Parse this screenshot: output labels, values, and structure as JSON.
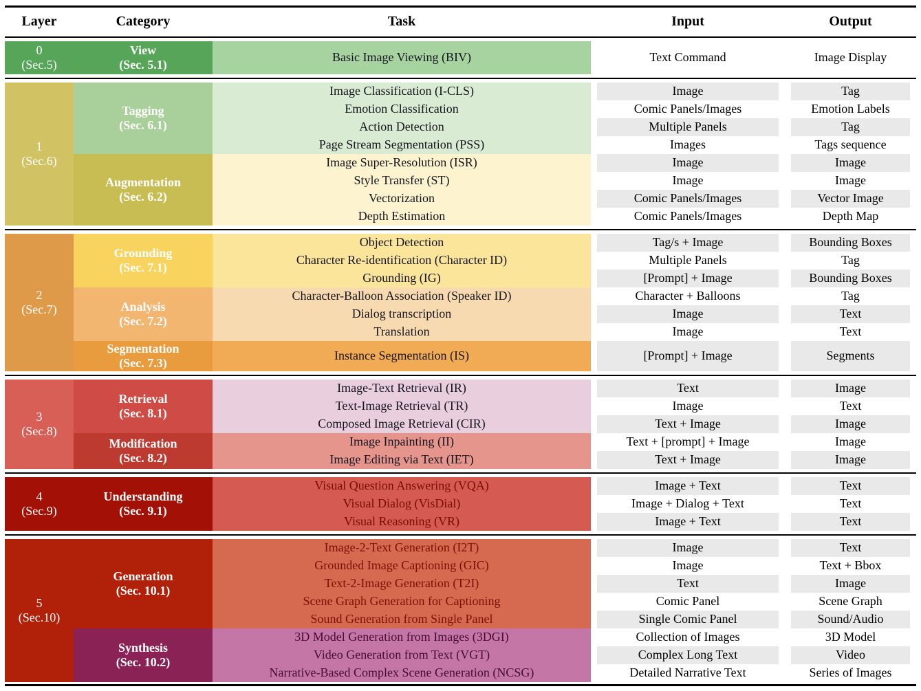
{
  "header": {
    "columns": [
      "Layer",
      "Category",
      "Task",
      "Input",
      "Output"
    ]
  },
  "colors": {
    "stripe": "#e9e9e9",
    "stripe_alt": "#ffffff",
    "task_text": "#14141d",
    "rule": "#000000"
  },
  "layers": [
    {
      "label": "0",
      "sec": "(Sec.5)",
      "color": "#56a558",
      "categories": [
        {
          "label": "View",
          "sec": "(Sec. 5.1)",
          "color": "#56a558",
          "task_bg": "#a7d3a0",
          "tasks": [
            {
              "name": "Basic Image Viewing (BIV)",
              "input": "Text Command",
              "output": "Image Display"
            }
          ]
        }
      ]
    },
    {
      "label": "1",
      "sec": "(Sec.6)",
      "color": "#d1c263",
      "categories": [
        {
          "label": "Tagging",
          "sec": "(Sec. 6.1)",
          "color": "#a9cf9a",
          "task_bg": "#d9ebd2",
          "tasks": [
            {
              "name": "Image Classification (I-CLS)",
              "input": "Image",
              "output": "Tag"
            },
            {
              "name": "Emotion Classification",
              "input": "Comic Panels/Images",
              "output": "Emotion Labels"
            },
            {
              "name": "Action Detection",
              "input": "Multiple Panels",
              "output": "Tag"
            },
            {
              "name": "Page Stream Segmentation (PSS)",
              "input": "Images",
              "output": "Tags sequence"
            }
          ]
        },
        {
          "label": "Augmentation",
          "sec": "(Sec. 6.2)",
          "color": "#c8bd52",
          "task_bg": "#fdf3cf",
          "tasks": [
            {
              "name": "Image Super-Resolution (ISR)",
              "input": "Image",
              "output": "Image"
            },
            {
              "name": "Style Transfer (ST)",
              "input": "Image",
              "output": "Image"
            },
            {
              "name": "Vectorization",
              "input": "Comic Panels/Images",
              "output": "Vector Image"
            },
            {
              "name": "Depth Estimation",
              "input": "Comic Panels/Images",
              "output": "Depth Map"
            }
          ]
        }
      ]
    },
    {
      "label": "2",
      "sec": "(Sec.7)",
      "color": "#df9a49",
      "categories": [
        {
          "label": "Grounding",
          "sec": "(Sec. 7.1)",
          "color": "#f8d45f",
          "task_bg": "#fbe59b",
          "tasks": [
            {
              "name": "Object Detection",
              "input": "Tag/s + Image",
              "output": "Bounding Boxes"
            },
            {
              "name": "Character Re-identification (Character ID)",
              "input": "Multiple Panels",
              "output": "Tag"
            },
            {
              "name": "Grounding (IG)",
              "input": "[Prompt] + Image",
              "output": "Bounding Boxes"
            }
          ]
        },
        {
          "label": "Analysis",
          "sec": "(Sec. 7.2)",
          "color": "#f3b671",
          "task_bg": "#f8dab0",
          "tasks": [
            {
              "name": "Character-Balloon Association (Speaker ID)",
              "input": "Character + Balloons",
              "output": "Tag"
            },
            {
              "name": "Dialog transcription",
              "input": "Image",
              "output": "Text"
            },
            {
              "name": "Translation",
              "input": "Image",
              "output": "Text"
            }
          ]
        },
        {
          "label": "Segmentation",
          "sec": "(Sec. 7.3)",
          "color": "#e89c3e",
          "task_bg": "#f2ab55",
          "tasks": [
            {
              "name": "Instance Segmentation (IS)",
              "input": "[Prompt] + Image",
              "output": "Segments"
            }
          ]
        }
      ]
    },
    {
      "label": "3",
      "sec": "(Sec.8)",
      "color": "#d75f56",
      "categories": [
        {
          "label": "Retrieval",
          "sec": "(Sec. 8.1)",
          "color": "#cf4c46",
          "task_bg": "#e9cede",
          "tasks": [
            {
              "name": "Image-Text Retrieval (IR)",
              "input": "Text",
              "output": "Image"
            },
            {
              "name": "Text-Image Retrieval (TR)",
              "input": "Image",
              "output": "Text"
            },
            {
              "name": "Composed Image Retrieval (CIR)",
              "input": "Text + Image",
              "output": "Image"
            }
          ]
        },
        {
          "label": "Modification",
          "sec": "(Sec. 8.2)",
          "color": "#bd3a31",
          "task_bg": "#e6958d",
          "tasks": [
            {
              "name": "Image Inpainting (II)",
              "input": "Text + [prompt] + Image",
              "output": "Image"
            },
            {
              "name": "Image Editing via Text (IET)",
              "input": "Text + Image",
              "output": "Image"
            }
          ]
        }
      ]
    },
    {
      "label": "4",
      "sec": "(Sec.9)",
      "color": "#a31106",
      "categories": [
        {
          "label": "Understanding",
          "sec": "(Sec. 9.1)",
          "color": "#a31106",
          "task_bg": "#d55b52",
          "task_text": "#7a0b02",
          "tasks": [
            {
              "name": "Visual Question Answering (VQA)",
              "input": "Image + Text",
              "output": "Text"
            },
            {
              "name": "Visual Dialog (VisDial)",
              "input": "Image + Dialog + Text",
              "output": "Text"
            },
            {
              "name": "Visual Reasoning (VR)",
              "input": "Image + Text",
              "output": "Text"
            }
          ]
        }
      ]
    },
    {
      "label": "5",
      "sec": "(Sec.10)",
      "color": "#b12008",
      "categories": [
        {
          "label": "Generation",
          "sec": "(Sec. 10.1)",
          "color": "#b12008",
          "task_bg": "#d56a51",
          "task_text": "#7a1100",
          "tasks": [
            {
              "name": "Image-2-Text Generation (I2T)",
              "input": "Image",
              "output": "Text"
            },
            {
              "name": "Grounded Image Captioning (GIC)",
              "input": "Image",
              "output": "Text + Bbox"
            },
            {
              "name": "Text-2-Image Generation (T2I)",
              "input": "Text",
              "output": "Image"
            },
            {
              "name": "Scene Graph Generation for Captioning",
              "input": "Comic Panel",
              "output": "Scene Graph"
            },
            {
              "name": "Sound Generation from Single Panel",
              "input": "Single Comic Panel",
              "output": "Sound/Audio"
            }
          ]
        },
        {
          "label": "Synthesis",
          "sec": "(Sec. 10.2)",
          "color": "#8a2256",
          "task_bg": "#c477a7",
          "task_text": "#470b30",
          "tasks": [
            {
              "name": "3D Model Generation from Images (3DGI)",
              "input": "Collection of Images",
              "output": "3D Model"
            },
            {
              "name": "Video Generation from Text (VGT)",
              "input": "Complex Long Text",
              "output": "Video"
            },
            {
              "name": "Narrative-Based Complex Scene Generation (NCSG)",
              "input": "Detailed Narrative Text",
              "output": "Series of Images"
            }
          ]
        }
      ]
    }
  ]
}
